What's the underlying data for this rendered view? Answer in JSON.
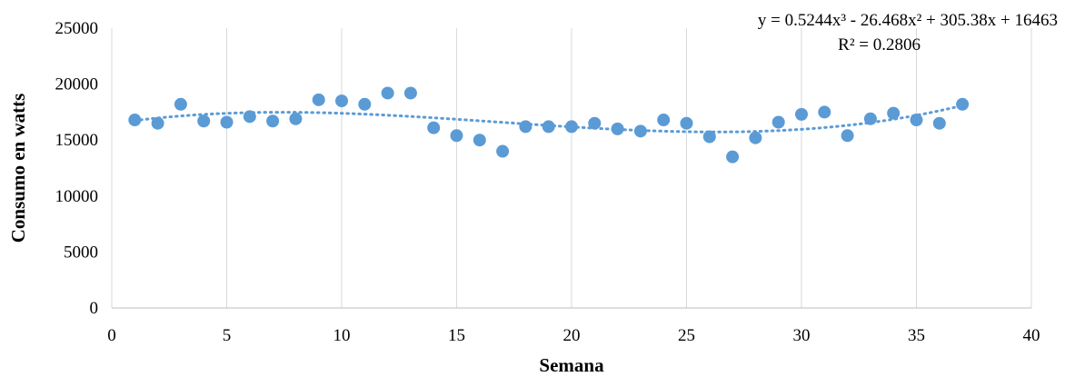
{
  "chart_data": {
    "type": "scatter",
    "title": "",
    "xlabel": "Semana",
    "ylabel": "Consumo en watts",
    "xlim": [
      0,
      40
    ],
    "ylim": [
      0,
      25000
    ],
    "x_ticks": [
      0,
      5,
      10,
      15,
      20,
      25,
      30,
      35,
      40
    ],
    "y_ticks": [
      0,
      5000,
      10000,
      15000,
      20000,
      25000
    ],
    "x_tick_labels": [
      "0",
      "5",
      "10",
      "15",
      "20",
      "25",
      "30",
      "35",
      "40"
    ],
    "y_tick_labels": [
      "0",
      "5000",
      "10000",
      "15000",
      "20000",
      "25000"
    ],
    "grid": "vertical",
    "legend": "none",
    "point_color": "#5B9BD5",
    "trendline_color": "#5B9BD5",
    "series": [
      {
        "x": [
          1,
          2,
          3,
          4,
          5,
          6,
          7,
          8,
          9,
          10,
          11,
          12,
          13,
          14,
          15,
          16,
          17,
          18,
          19,
          20,
          21,
          22,
          23,
          24,
          25,
          26,
          27,
          28,
          29,
          30,
          31,
          32,
          33,
          34,
          35,
          36,
          37
        ],
        "y": [
          16800,
          16500,
          18200,
          16700,
          16600,
          17100,
          16700,
          16900,
          18600,
          18500,
          18200,
          19200,
          19200,
          16100,
          15400,
          15000,
          14000,
          16200,
          16200,
          16200,
          16500,
          16000,
          15800,
          16800,
          16500,
          15300,
          13500,
          15200,
          16600,
          17300,
          17500,
          15400,
          16900,
          17400,
          16800,
          16500,
          18200
        ]
      }
    ],
    "trendline": {
      "type": "polynomial",
      "order": 3,
      "coefficients": [
        0.5244,
        -26.468,
        305.38,
        16463
      ],
      "x_range": [
        1,
        37
      ],
      "equation": "y = 0.5244x³ - 26.468x² + 305.38x + 16463",
      "r_squared": "R² = 0.2806"
    }
  }
}
